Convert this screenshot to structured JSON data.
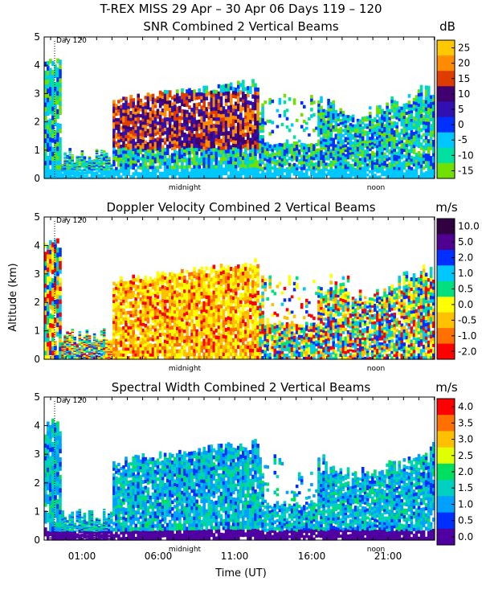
{
  "header": {
    "title": "T-REX MISS    29 Apr – 30 Apr 06 Days 119 – 120"
  },
  "chart_data": [
    {
      "type": "heatmap",
      "title": "SNR Combined 2 Vertical Beams",
      "ylabel": "",
      "xlabel": "",
      "ylim": [
        0,
        5
      ],
      "yticks": [
        "0",
        "1",
        "2",
        "3",
        "4",
        "5"
      ],
      "day_marker": "Day 120",
      "annotations": [
        "midnight",
        "noon"
      ],
      "colorbar": {
        "unit": "dB",
        "labels": [
          "25",
          "20",
          "15",
          "10",
          "5",
          "0",
          "-5",
          "-10",
          "-15"
        ],
        "colors": [
          "#ffc800",
          "#ff8c00",
          "#e03c00",
          "#400070",
          "#3010b0",
          "#0030ff",
          "#00c8ff",
          "#00e0a0",
          "#70e000"
        ]
      }
    },
    {
      "type": "heatmap",
      "title": "Doppler Velocity Combined 2 Vertical Beams",
      "ylabel": "Altitude (km)",
      "xlabel": "",
      "ylim": [
        0,
        5
      ],
      "yticks": [
        "0",
        "1",
        "2",
        "3",
        "4",
        "5"
      ],
      "day_marker": "Day 120",
      "annotations": [
        "midnight",
        "noon"
      ],
      "colorbar": {
        "unit": "m/s",
        "labels": [
          "10.0",
          "5.0",
          "2.0",
          "1.0",
          "0.5",
          "0.0",
          "-0.5",
          "-1.0",
          "-2.0"
        ],
        "colors": [
          "#300040",
          "#500090",
          "#0030ff",
          "#00c8ff",
          "#00e080",
          "#ffff00",
          "#ffc000",
          "#ff7000",
          "#ff0000"
        ]
      }
    },
    {
      "type": "heatmap",
      "title": "Spectral Width Combined 2 Vertical Beams",
      "ylabel": "",
      "xlabel": "Time (UT)",
      "ylim": [
        0,
        5
      ],
      "yticks": [
        "0",
        "1",
        "2",
        "3",
        "4",
        "5"
      ],
      "xticks": [
        "01:00",
        "06:00",
        "11:00",
        "16:00",
        "21:00"
      ],
      "day_marker": "Day 120",
      "annotations": [
        "midnight",
        "noon"
      ],
      "colorbar": {
        "unit": "m/s",
        "labels": [
          "4.0",
          "3.5",
          "3.0",
          "2.5",
          "2.0",
          "1.5",
          "1.0",
          "0.5",
          "0.0"
        ],
        "colors": [
          "#ff0000",
          "#ff7000",
          "#ffc000",
          "#e0ff00",
          "#00e060",
          "#00d0c0",
          "#00a0ff",
          "#0030ff",
          "#5000a0"
        ]
      }
    }
  ]
}
